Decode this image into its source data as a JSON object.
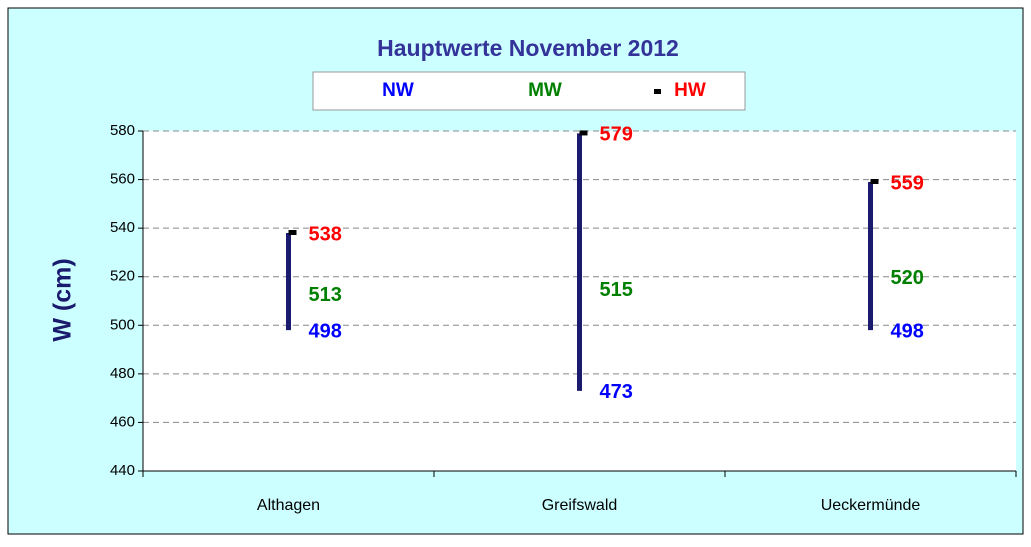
{
  "chart_data": {
    "type": "highlow",
    "title": "Hauptwerte November 2012",
    "y_label": "W (cm)",
    "categories": [
      "Althagen",
      "Greifswald",
      "Ueckermünde"
    ],
    "series": [
      {
        "name": "NW",
        "color": "#0000ff",
        "values": [
          498,
          473,
          498
        ]
      },
      {
        "name": "MW",
        "color": "#008000",
        "values": [
          513,
          515,
          520
        ]
      },
      {
        "name": "HW",
        "color": "#ff0000",
        "values": [
          538,
          579,
          559
        ]
      }
    ],
    "bar_color": "#1a1a6e",
    "marker_color": "#000000",
    "ylim": [
      440,
      580
    ],
    "yticks": [
      440,
      460,
      480,
      500,
      520,
      540,
      560,
      580
    ],
    "grid": true
  }
}
